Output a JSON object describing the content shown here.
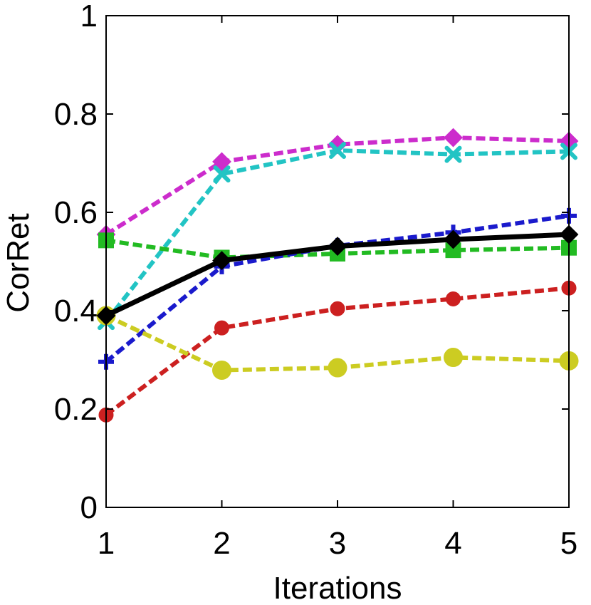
{
  "chart_data": {
    "type": "line",
    "title": "",
    "xlabel": "Iterations",
    "ylabel": "CorRet",
    "x": [
      1,
      2,
      3,
      4,
      5
    ],
    "xlim": [
      1,
      5
    ],
    "ylim": [
      0,
      1
    ],
    "x_ticks": [
      "1",
      "2",
      "3",
      "4",
      "5"
    ],
    "y_ticks": [
      "0",
      "0.2",
      "0.4",
      "0.6",
      "0.8",
      "1"
    ],
    "grid": false,
    "legend": "none",
    "series": [
      {
        "values": [
          0.555,
          0.703,
          0.738,
          0.752,
          0.745
        ],
        "color": "#cc2ccc",
        "marker": "diamond",
        "dashed": true
      },
      {
        "values": [
          0.378,
          0.678,
          0.726,
          0.718,
          0.724
        ],
        "color": "#22c4c4",
        "marker": "x",
        "dashed": true
      },
      {
        "values": [
          0.543,
          0.508,
          0.516,
          0.523,
          0.528
        ],
        "color": "#22bb22",
        "marker": "square",
        "dashed": true
      },
      {
        "values": [
          0.296,
          0.49,
          0.532,
          0.559,
          0.593
        ],
        "color": "#1a1acc",
        "marker": "plus",
        "dashed": true
      },
      {
        "values": [
          0.188,
          0.365,
          0.404,
          0.424,
          0.446
        ],
        "color": "#cc2020",
        "marker": "circle",
        "dashed": true
      },
      {
        "values": [
          0.39,
          0.279,
          0.284,
          0.305,
          0.298
        ],
        "color": "#cccc22",
        "marker": "circle-large",
        "dashed": true
      },
      {
        "values": [
          0.39,
          0.502,
          0.531,
          0.545,
          0.555
        ],
        "color": "#000000",
        "marker": "diamond",
        "dashed": false
      }
    ]
  }
}
